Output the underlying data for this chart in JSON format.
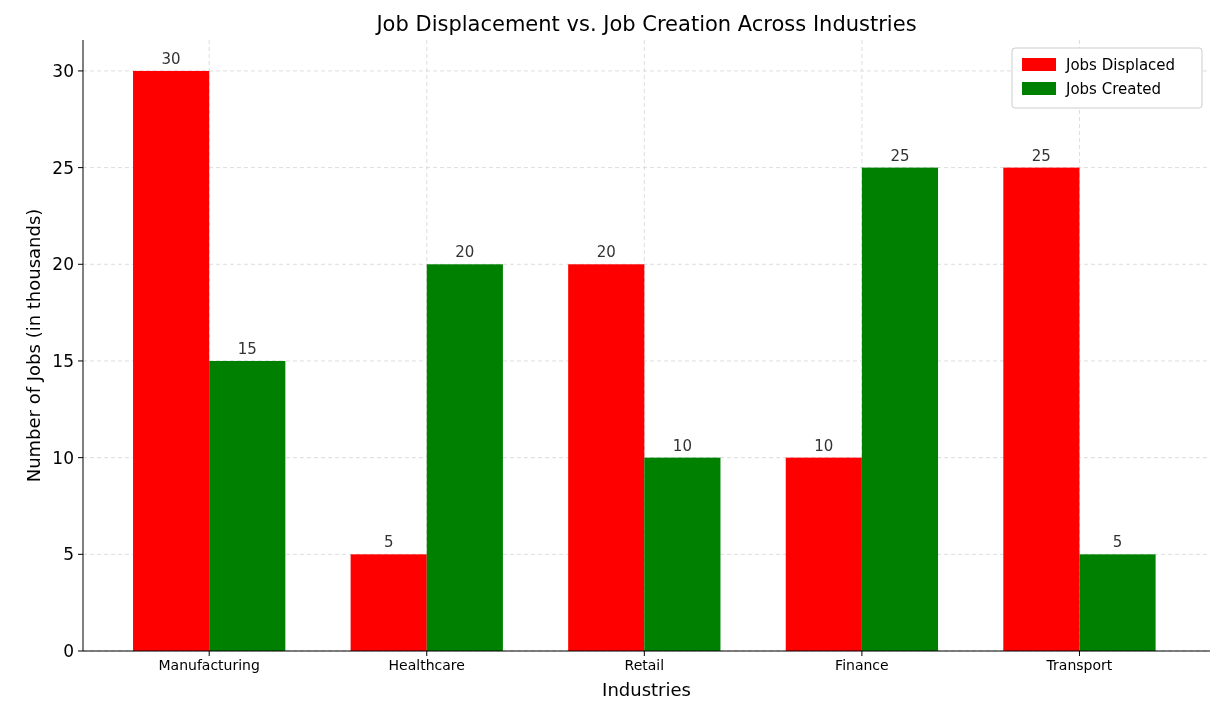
{
  "chart_data": {
    "type": "bar",
    "title": "Job Displacement vs. Job Creation Across Industries",
    "xlabel": "Industries",
    "ylabel": "Number of Jobs (in thousands)",
    "categories": [
      "Manufacturing",
      "Healthcare",
      "Retail",
      "Finance",
      "Transport"
    ],
    "series": [
      {
        "name": "Jobs Displaced",
        "color": "#ff0000",
        "values": [
          30,
          5,
          20,
          10,
          25
        ]
      },
      {
        "name": "Jobs Created",
        "color": "#008000",
        "values": [
          15,
          20,
          10,
          25,
          5
        ]
      }
    ],
    "ylim": [
      0,
      31.6
    ],
    "yticks": [
      0,
      5,
      10,
      15,
      20,
      25,
      30
    ],
    "grid": true,
    "legend": "top right",
    "data_labels": true
  }
}
